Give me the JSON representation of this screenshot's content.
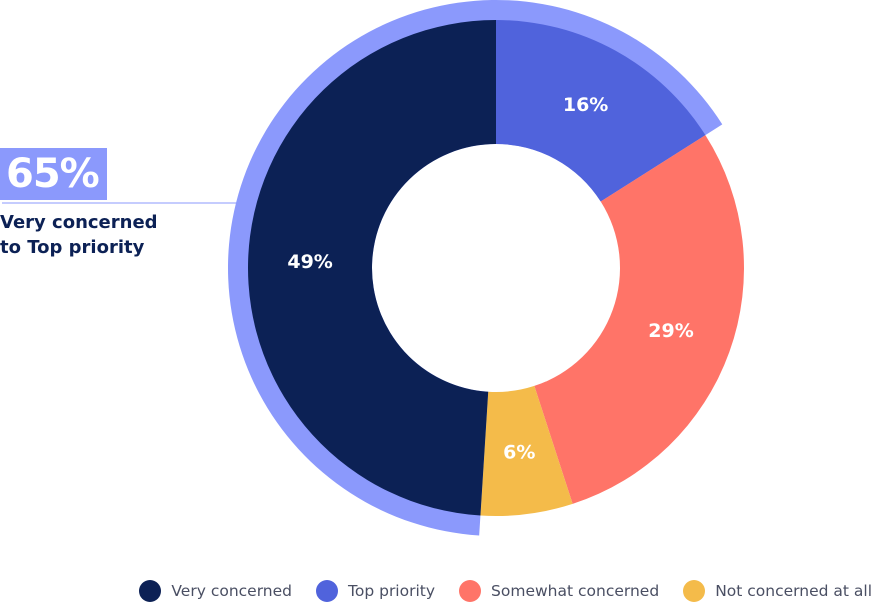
{
  "chart_data": {
    "type": "pie",
    "variant": "donut",
    "categories": [
      "Top priority",
      "Somewhat concerned",
      "Not concerned at all",
      "Very concerned"
    ],
    "values": [
      16,
      29,
      6,
      49
    ],
    "value_labels": [
      "16%",
      "29%",
      "6%",
      "49%"
    ],
    "colors": [
      "#5063dc",
      "#ff7468",
      "#f4bb4a",
      "#0c2155"
    ],
    "highlight": {
      "value": "65%",
      "label_line1": "Very concerned",
      "label_line2": "to Top priority",
      "color": "#8b99fc"
    },
    "legend": {
      "placement": "bottom-right",
      "items": [
        {
          "label": "Very concerned",
          "color": "#0c2155"
        },
        {
          "label": "Top priority",
          "color": "#5063dc"
        },
        {
          "label": "Somewhat concerned",
          "color": "#ff7468"
        },
        {
          "label": "Not concerned at all",
          "color": "#f4bb4a"
        }
      ]
    }
  }
}
